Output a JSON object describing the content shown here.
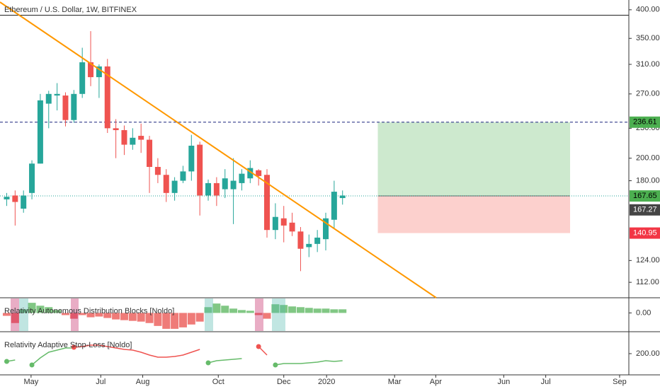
{
  "chart_data": [
    {
      "type": "candlestick",
      "title": "Ethereum / U.S. Dollar, 1W, BITFINEX",
      "log_scale": true,
      "grid": false,
      "up_color": "#26a69a",
      "down_color": "#ef5350",
      "x": [
        -3,
        -2,
        -1,
        0,
        1,
        2,
        3,
        4,
        5,
        6,
        7,
        8,
        9,
        10,
        11,
        12,
        13,
        14,
        15,
        16,
        17,
        18,
        19,
        20,
        21,
        22,
        23,
        24,
        25,
        26,
        27,
        28,
        29,
        30,
        31,
        32,
        33,
        34,
        35,
        36,
        37
      ],
      "open": [
        165,
        168,
        158,
        170,
        195,
        258,
        268,
        268,
        239,
        270,
        313,
        292,
        307,
        230,
        228,
        213,
        222,
        218,
        192,
        185,
        170,
        180,
        188,
        213,
        168,
        178,
        173,
        173,
        178,
        182,
        189,
        185,
        143,
        151,
        148,
        142,
        132,
        134,
        137,
        150,
        166
      ],
      "high": [
        170,
        172,
        172,
        198,
        270,
        274,
        284,
        272,
        275,
        335,
        362,
        310,
        318,
        240,
        233,
        230,
        235,
        222,
        200,
        190,
        183,
        193,
        223,
        216,
        181,
        183,
        190,
        200,
        190,
        198,
        190,
        190,
        162,
        160,
        155,
        145,
        140,
        143,
        155,
        180,
        172
      ],
      "low": [
        160,
        146,
        155,
        165,
        195,
        230,
        250,
        232,
        236,
        265,
        280,
        265,
        225,
        200,
        203,
        208,
        205,
        170,
        178,
        163,
        164,
        178,
        180,
        153,
        164,
        160,
        166,
        147,
        172,
        178,
        176,
        138,
        137,
        135,
        139,
        118,
        126,
        129,
        130,
        144,
        161
      ],
      "close": [
        167,
        163,
        168,
        195,
        262,
        270,
        270,
        239,
        270,
        313,
        292,
        307,
        230,
        228,
        213,
        220,
        218,
        192,
        185,
        170,
        180,
        188,
        212,
        168,
        178,
        168,
        182,
        180,
        186,
        191,
        184,
        143,
        152,
        146,
        142,
        131,
        134,
        138,
        151,
        171,
        168
      ],
      "xlim": [
        -3.8,
        71.1
      ],
      "xticks": [
        {
          "value": -0.1,
          "label": "May"
        },
        {
          "value": 8.2,
          "label": "Jul"
        },
        {
          "value": 13.2,
          "label": "Aug"
        },
        {
          "value": 22.2,
          "label": "Oct"
        },
        {
          "value": 30,
          "label": "Dec"
        },
        {
          "value": 35.1,
          "label": "2020"
        },
        {
          "value": 43.2,
          "label": "Mar"
        },
        {
          "value": 48.1,
          "label": "Apr"
        },
        {
          "value": 56.2,
          "label": "Jun"
        },
        {
          "value": 61.2,
          "label": "Jul"
        },
        {
          "value": 70,
          "label": "Sep"
        }
      ],
      "ylim": [
        104.2,
        418.7
      ],
      "yticks": [
        {
          "value": 400,
          "label": "400.00"
        },
        {
          "value": 350,
          "label": "350.00"
        },
        {
          "value": 310,
          "label": "310.00"
        },
        {
          "value": 270,
          "label": "270.00"
        },
        {
          "value": 230,
          "label": "230.00"
        },
        {
          "value": 200,
          "label": "200.00"
        },
        {
          "value": 180,
          "label": "180.00"
        },
        {
          "value": 124,
          "label": "124.00"
        },
        {
          "value": 112,
          "label": "112.00"
        }
      ],
      "horizontal_line": 390,
      "last_price": 167.65,
      "position_price": 167.27,
      "position": {
        "x": [
          41.2,
          64.1
        ],
        "target": 236.61,
        "entry": 167.65,
        "stop": 140.95
      }
    },
    {
      "type": "histogram",
      "title": "Relativity Autonomous Distribution Blocks [Noldo]",
      "up_color": "#81c784",
      "down_color": "#ef7b78",
      "values": [
        -4,
        -14,
        5,
        14,
        10,
        8,
        4,
        -3,
        -8,
        -3,
        -6,
        -5,
        -7,
        -9,
        -10,
        -11,
        -12,
        -14,
        -18,
        -22,
        -22,
        -20,
        -16,
        -12,
        8,
        13,
        10,
        6,
        4,
        3,
        -3,
        -8,
        12,
        11,
        9,
        8,
        7,
        6,
        6,
        5,
        5
      ],
      "ylim": [
        -25,
        20
      ],
      "yticks": [
        {
          "value": 0,
          "label": "0.00"
        }
      ]
    },
    {
      "type": "line",
      "title": "Relativity Adaptive Stop-Loss [Noldo]",
      "series": [
        {
          "color": "#66bb6a",
          "values": [
            194.5,
            195.5,
            null,
            192,
            197,
            201,
            202.5,
            204,
            204,
            null,
            null,
            null,
            null,
            null,
            null,
            null,
            null,
            null,
            null,
            null,
            null,
            null,
            null,
            null,
            193.5,
            195,
            195.5,
            196,
            196.5,
            null,
            null,
            null,
            192,
            193,
            193,
            193,
            193.5,
            194,
            195,
            194.5,
            195
          ]
        },
        {
          "color": "#ef5350",
          "values": [
            null,
            null,
            null,
            null,
            null,
            null,
            null,
            null,
            204.5,
            205,
            206,
            206,
            205,
            204,
            203,
            202.5,
            201,
            199,
            197.5,
            197.5,
            198,
            199,
            201,
            203,
            null,
            null,
            null,
            null,
            null,
            null,
            205,
            199,
            null,
            null,
            null,
            null,
            null,
            null,
            null,
            null,
            null
          ]
        }
      ],
      "ylim": [
        185,
        215
      ],
      "yticks": [
        {
          "value": 200,
          "label": "200.00"
        }
      ]
    }
  ]
}
